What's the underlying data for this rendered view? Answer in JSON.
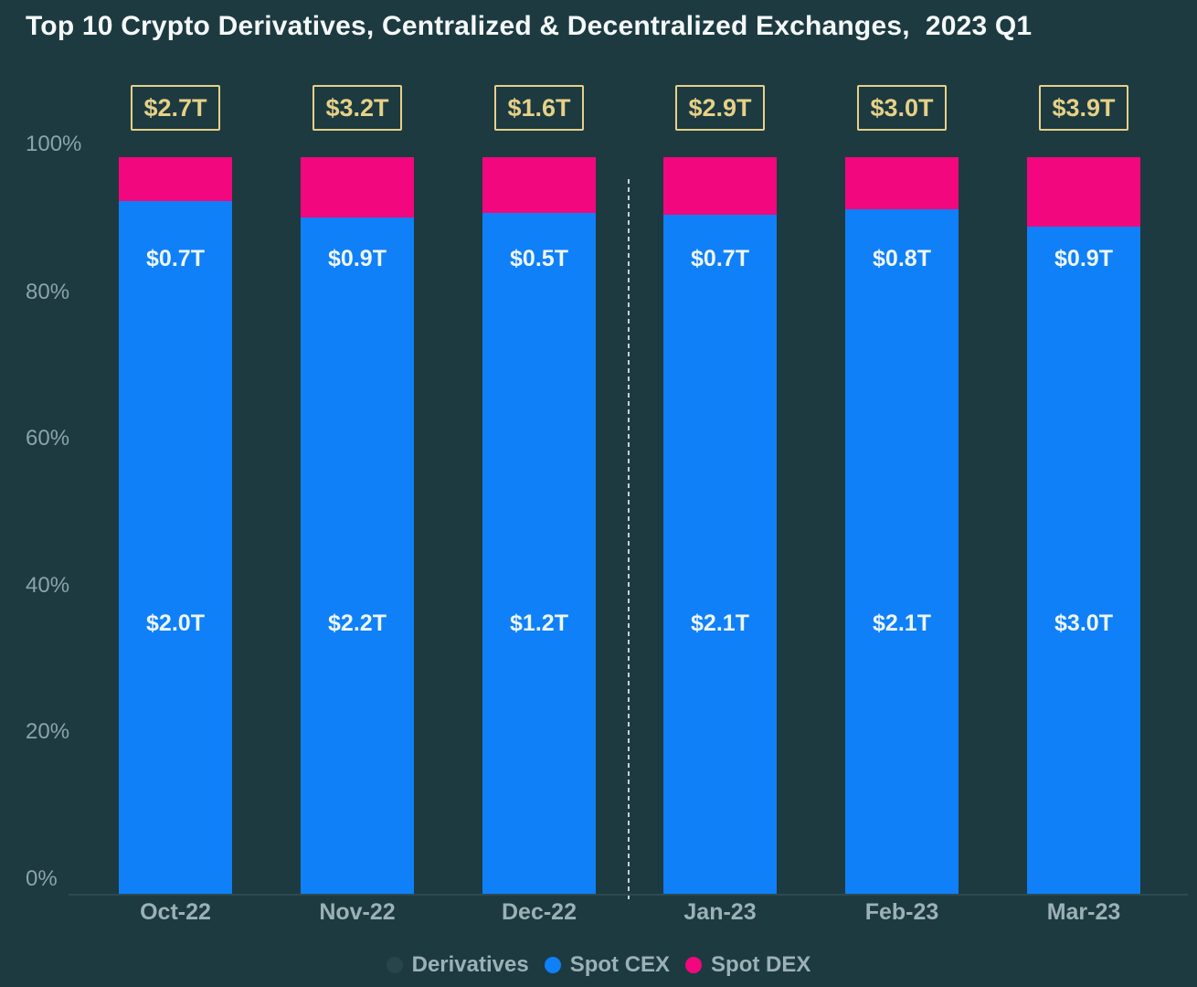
{
  "chart_data": {
    "type": "bar",
    "subtype": "100-percent-stacked-columns",
    "title": "Top 10 Crypto Derivatives, Centralized & Decentralized Exchanges,  2023 Q1",
    "categories": [
      "Oct-22",
      "Nov-22",
      "Dec-22",
      "Jan-23",
      "Feb-23",
      "Mar-23"
    ],
    "y_axis": {
      "ticks": [
        "100%",
        "80%",
        "60%",
        "40%",
        "20%",
        "0%"
      ],
      "range_pct": [
        0,
        100
      ],
      "grid": false
    },
    "series": [
      {
        "name": "Derivatives",
        "labels": [
          "$2.7T",
          "$3.2T",
          "$1.6T",
          "$2.9T",
          "$3.0T",
          "$3.9T"
        ]
      },
      {
        "name": "Spot CEX",
        "labels": [
          "$2.0T",
          "$2.2T",
          "$1.2T",
          "$2.1T",
          "$2.1T",
          "$3.0T"
        ],
        "share_pct": [
          94.1,
          91.8,
          92.4,
          92.2,
          92.9,
          90.6
        ]
      },
      {
        "name": "Spot DEX",
        "labels": [
          "$0.7T",
          "$0.9T",
          "$0.5T",
          "$0.7T",
          "$0.8T",
          "$0.9T"
        ],
        "share_pct": [
          5.9,
          8.2,
          7.6,
          7.8,
          7.1,
          9.4
        ]
      }
    ],
    "bars": [
      {
        "month": "Oct-22",
        "derivatives_label": "$2.7T",
        "spot_dex_label": "$0.7T",
        "spot_cex_label": "$2.0T",
        "dex_share_pct": 5.9
      },
      {
        "month": "Nov-22",
        "derivatives_label": "$3.2T",
        "spot_dex_label": "$0.9T",
        "spot_cex_label": "$2.2T",
        "dex_share_pct": 8.2
      },
      {
        "month": "Dec-22",
        "derivatives_label": "$1.6T",
        "spot_dex_label": "$0.5T",
        "spot_cex_label": "$1.2T",
        "dex_share_pct": 7.6
      },
      {
        "month": "Jan-23",
        "derivatives_label": "$2.9T",
        "spot_dex_label": "$0.7T",
        "spot_cex_label": "$2.1T",
        "dex_share_pct": 7.8
      },
      {
        "month": "Feb-23",
        "derivatives_label": "$3.0T",
        "spot_dex_label": "$0.8T",
        "spot_cex_label": "$2.1T",
        "dex_share_pct": 7.1
      },
      {
        "month": "Mar-23",
        "derivatives_label": "$3.9T",
        "spot_dex_label": "$0.9T",
        "spot_cex_label": "$3.0T",
        "dex_share_pct": 9.4
      }
    ],
    "divider": {
      "between": [
        "Dec-22",
        "Jan-23"
      ],
      "style": "dashed-vertical"
    },
    "legend_position": "bottom"
  },
  "legend": {
    "items": [
      {
        "label": "Derivatives",
        "color": "#28454c"
      },
      {
        "label": "Spot CEX",
        "color": "#0f80f7"
      },
      {
        "label": "Spot DEX",
        "color": "#f2077e"
      }
    ]
  },
  "colors": {
    "background": "#1d3a40",
    "spot_cex_blue": "#0f80f7",
    "spot_dex_pink": "#f2077e",
    "derivatives_gold": "#e6d187",
    "title_text": "#f4f8f8",
    "axis_text": "#9bb1b6"
  }
}
